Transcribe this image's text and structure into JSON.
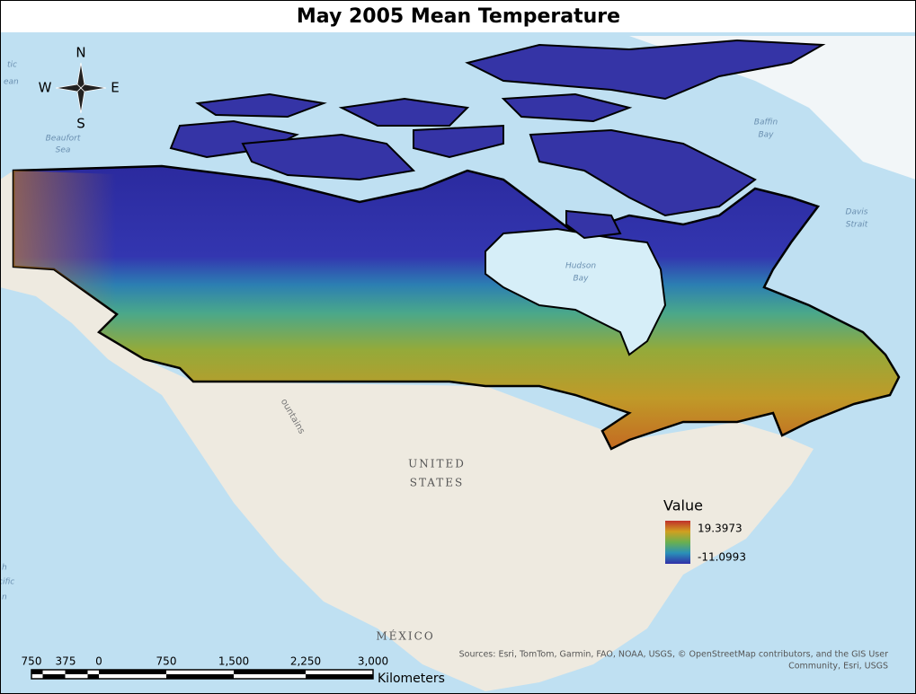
{
  "title": "May 2005 Mean Temperature",
  "compass": {
    "n": "N",
    "e": "E",
    "s": "S",
    "w": "W"
  },
  "places": {
    "arctic_ocean": [
      "tic",
      "ean"
    ],
    "beaufort_sea": [
      "Beaufort",
      "Sea"
    ],
    "baffin_bay": [
      "Baffin",
      "Bay"
    ],
    "davis_strait": [
      "Davis",
      "Strait"
    ],
    "hudson_bay": [
      "Hudson",
      "Bay"
    ],
    "mountains": "ountains",
    "united_states": [
      "UNITED",
      "STATES"
    ],
    "mexico": "MÉXICO",
    "pacific_ocean": [
      "h",
      "cific",
      "n"
    ]
  },
  "legend": {
    "title": "Value",
    "high": "19.3973",
    "low": "-11.0993"
  },
  "scale_bar": {
    "labels": [
      "750",
      "375",
      "0",
      "750",
      "1,500",
      "2,250",
      "3,000"
    ],
    "unit": "Kilometers"
  },
  "sources": [
    "Sources: Esri, TomTom, Garmin, FAO, NOAA, USGS, © OpenStreetMap contributors, and the GIS User",
    "Community, Esri, USGS"
  ]
}
